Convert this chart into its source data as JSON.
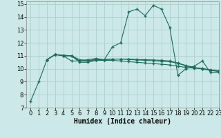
{
  "xlabel": "Humidex (Indice chaleur)",
  "bg_color": "#cce8e8",
  "grid_color": "#aed0d0",
  "line_color": "#1a6b5a",
  "xlim": [
    -0.5,
    23
  ],
  "ylim": [
    7,
    15.2
  ],
  "xticks": [
    0,
    1,
    2,
    3,
    4,
    5,
    6,
    7,
    8,
    9,
    10,
    11,
    12,
    13,
    14,
    15,
    16,
    17,
    18,
    19,
    20,
    21,
    22,
    23
  ],
  "yticks": [
    7,
    8,
    9,
    10,
    11,
    12,
    13,
    14,
    15
  ],
  "line1_x": [
    0,
    1,
    2,
    3,
    4,
    5,
    6,
    7,
    8,
    9,
    10,
    11,
    12,
    13,
    14,
    15,
    16,
    17,
    18,
    19,
    20,
    21,
    22,
    23
  ],
  "line1_y": [
    7.5,
    9.0,
    10.7,
    11.1,
    11.0,
    10.6,
    10.6,
    10.7,
    10.8,
    10.7,
    11.7,
    12.0,
    14.4,
    14.6,
    14.1,
    14.9,
    14.6,
    13.2,
    9.5,
    10.0,
    10.2,
    10.6,
    9.7,
    9.7
  ],
  "line2_x": [
    2,
    3,
    4,
    5,
    6,
    7,
    8,
    9,
    10,
    11,
    12,
    13,
    14,
    15,
    16,
    17,
    18,
    19,
    20,
    21,
    22,
    23
  ],
  "line2_y": [
    10.7,
    11.1,
    11.0,
    11.0,
    10.5,
    10.5,
    10.65,
    10.65,
    10.65,
    10.6,
    10.55,
    10.5,
    10.45,
    10.4,
    10.35,
    10.3,
    10.2,
    10.1,
    10.05,
    10.0,
    9.9,
    9.85
  ],
  "line3_x": [
    2,
    3,
    4,
    5,
    6,
    7,
    8,
    9,
    10,
    11,
    12,
    13,
    14,
    15,
    16,
    17,
    18,
    19,
    20,
    21,
    22,
    23
  ],
  "line3_y": [
    10.7,
    11.1,
    11.0,
    11.0,
    10.6,
    10.6,
    10.7,
    10.7,
    10.75,
    10.75,
    10.75,
    10.72,
    10.7,
    10.68,
    10.65,
    10.6,
    10.45,
    10.25,
    10.1,
    10.02,
    9.92,
    9.82
  ],
  "line4_x": [
    2,
    3,
    4,
    5,
    6,
    7,
    8,
    9,
    10,
    11,
    12,
    13,
    14,
    15,
    16,
    17,
    18,
    19,
    20,
    21,
    22,
    23
  ],
  "line4_y": [
    10.7,
    11.1,
    11.05,
    11.0,
    10.7,
    10.65,
    10.7,
    10.7,
    10.75,
    10.75,
    10.72,
    10.68,
    10.65,
    10.62,
    10.58,
    10.55,
    10.42,
    10.22,
    10.08,
    9.98,
    9.88,
    9.78
  ],
  "xlabel_fontsize": 7,
  "tick_fontsize": 6
}
